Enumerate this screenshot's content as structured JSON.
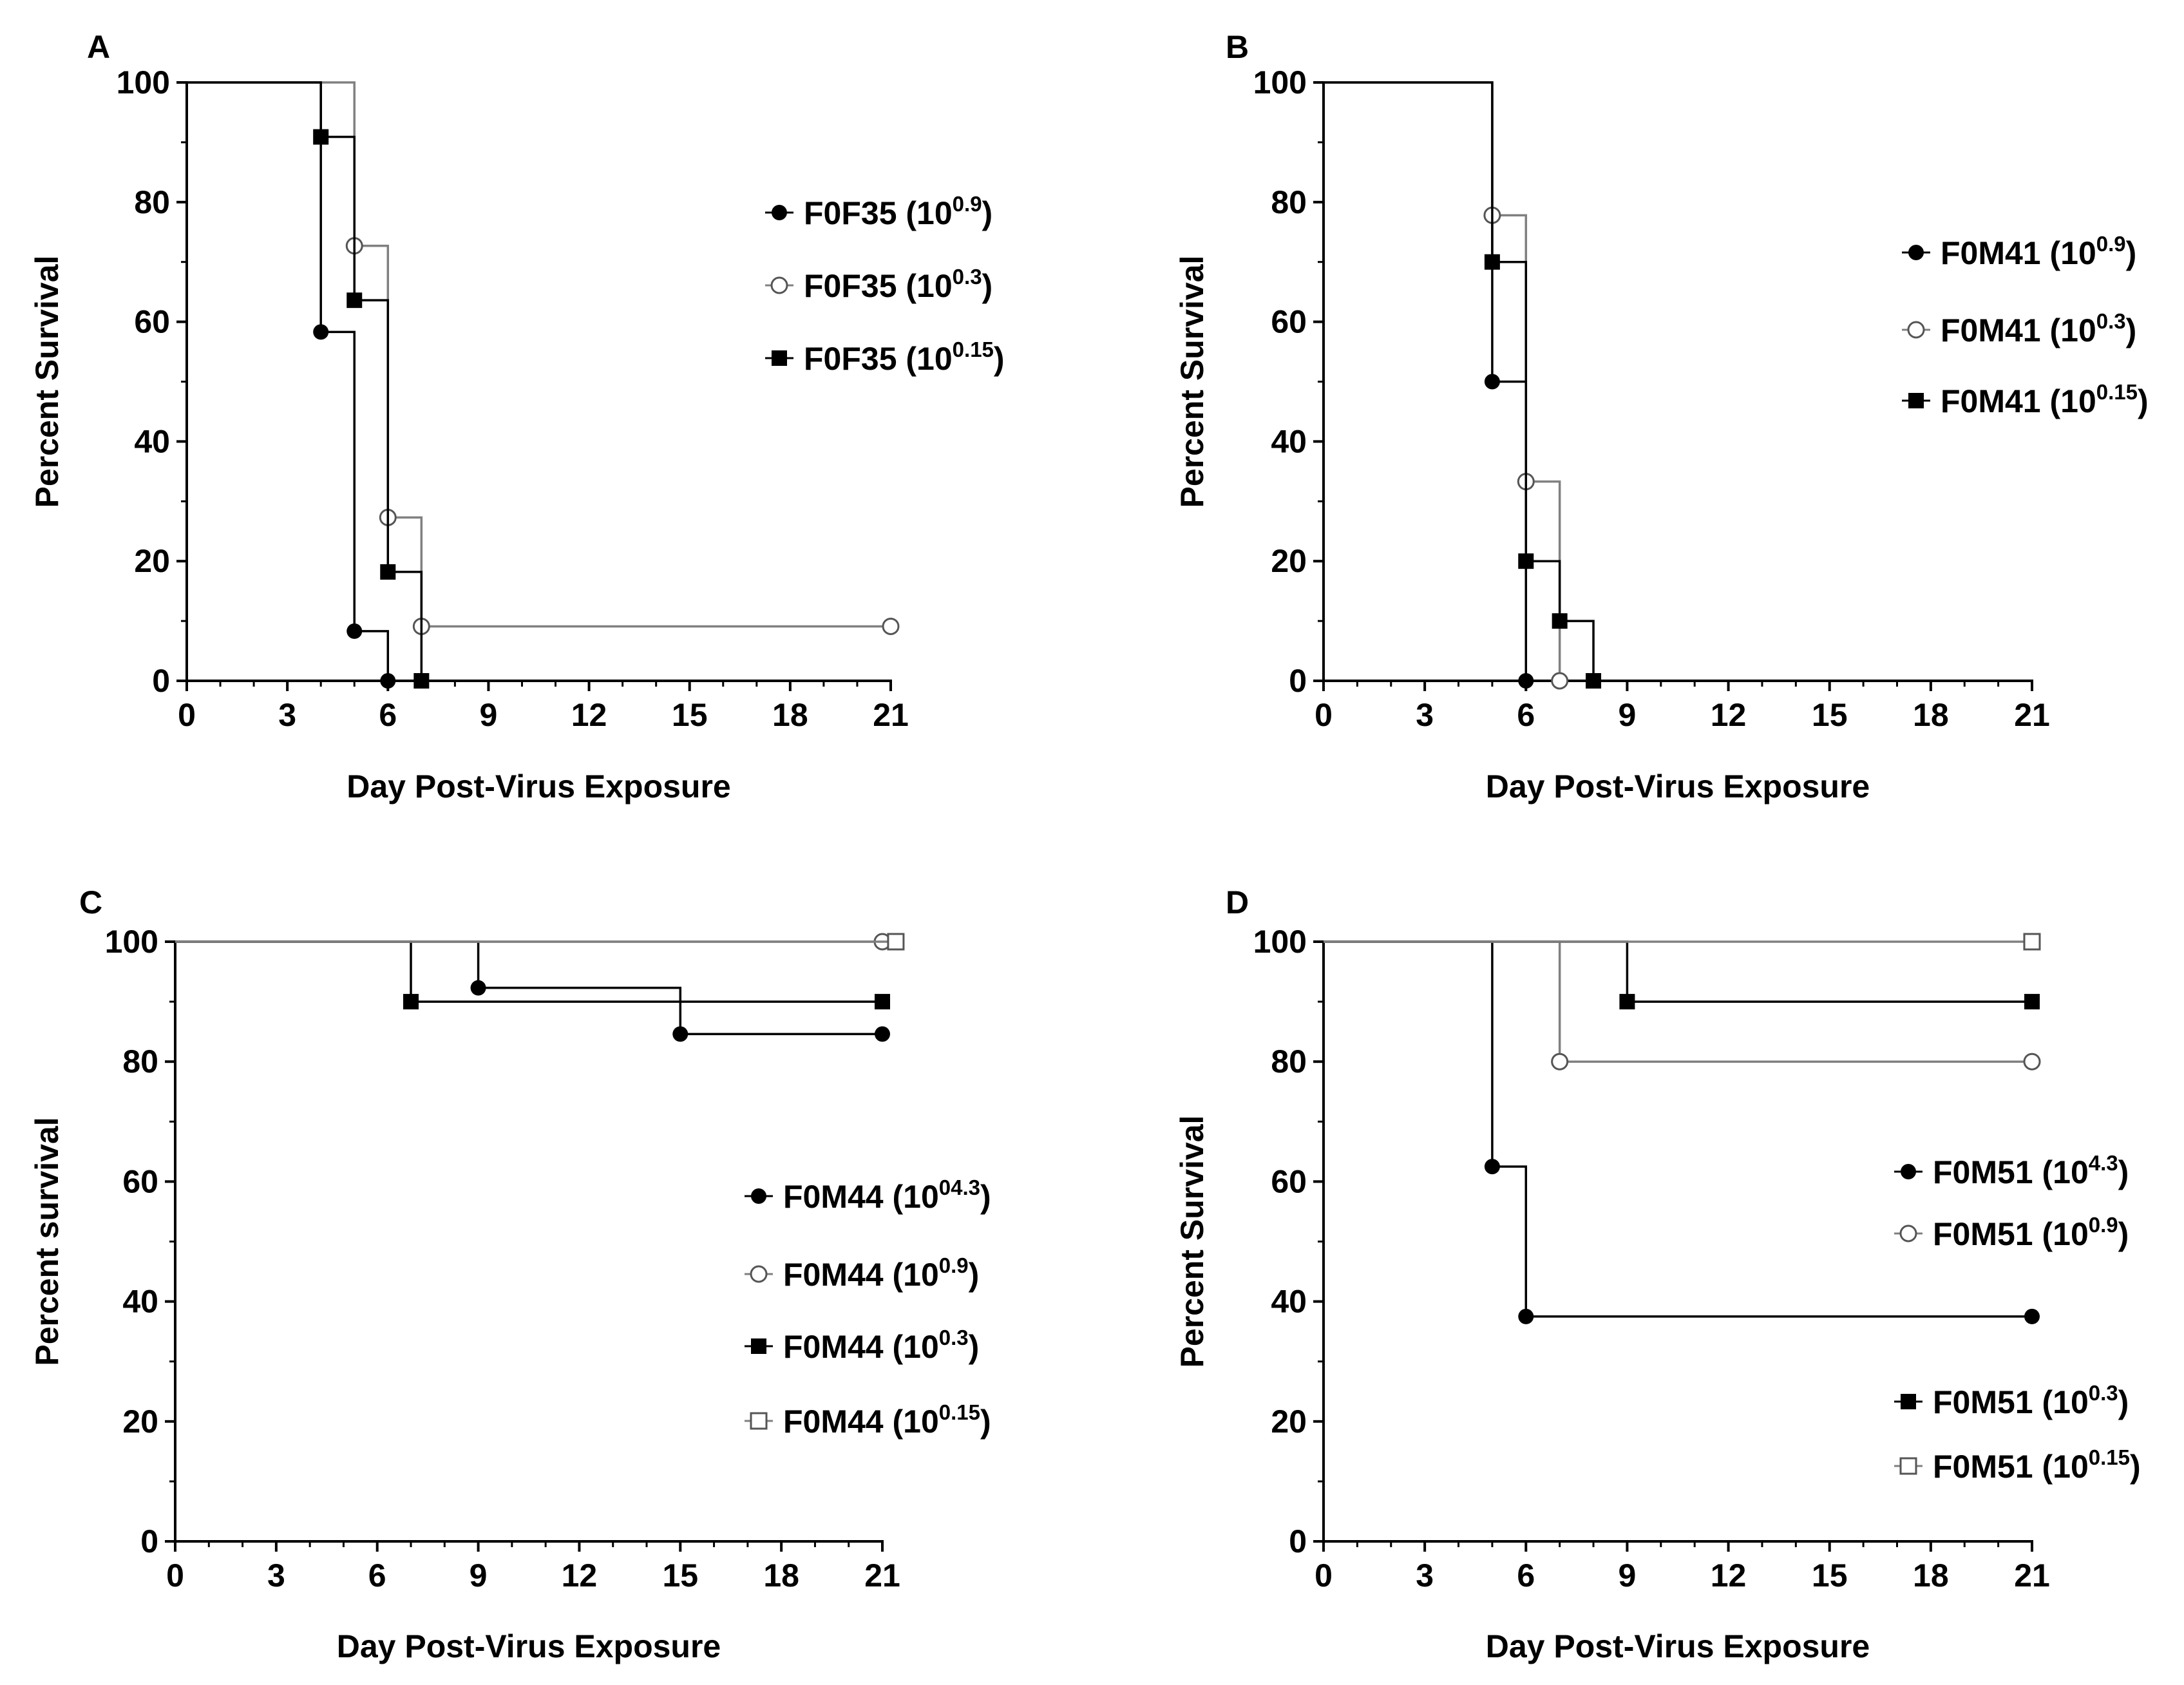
{
  "chart_data": [
    {
      "type": "line",
      "step": true,
      "panel": "A",
      "title": "",
      "xlabel": "Day Post-Virus Exposure",
      "ylabel": "Percent Survival",
      "xlim": [
        0,
        21
      ],
      "ylim": [
        0,
        100
      ],
      "xticks": [
        "0",
        "3",
        "6",
        "9",
        "12",
        "15",
        "18",
        "21"
      ],
      "yticks": [
        "0",
        "20",
        "40",
        "60",
        "80",
        "100"
      ],
      "legend_position": "right",
      "series": [
        {
          "name": "F0F35",
          "exp": "0.9",
          "marker": "filled-circle",
          "color": "#000000",
          "x": [
            0,
            4,
            5,
            6
          ],
          "y": [
            100,
            58.3,
            8.3,
            0
          ]
        },
        {
          "name": "F0F35",
          "exp": "0.3",
          "marker": "open-circle",
          "color": "#808080",
          "x": [
            0,
            5,
            6,
            7,
            21
          ],
          "y": [
            100,
            72.7,
            27.3,
            9.1,
            9.1
          ]
        },
        {
          "name": "F0F35",
          "exp": "0.15",
          "marker": "filled-square",
          "color": "#000000",
          "x": [
            0,
            4,
            5,
            6,
            7
          ],
          "y": [
            100,
            90.9,
            63.6,
            18.2,
            0
          ]
        }
      ]
    },
    {
      "type": "line",
      "step": true,
      "panel": "B",
      "title": "",
      "xlabel": "Day Post-Virus Exposure",
      "ylabel": "Percent Survival",
      "xlim": [
        0,
        21
      ],
      "ylim": [
        0,
        100
      ],
      "xticks": [
        "0",
        "3",
        "6",
        "9",
        "12",
        "15",
        "18",
        "21"
      ],
      "yticks": [
        "0",
        "20",
        "40",
        "60",
        "80",
        "100"
      ],
      "legend_position": "right",
      "series": [
        {
          "name": "F0M41",
          "exp": "0.9",
          "marker": "filled-circle",
          "color": "#000000",
          "x": [
            0,
            5,
            6
          ],
          "y": [
            100,
            50,
            0
          ]
        },
        {
          "name": "F0M41",
          "exp": "0.3",
          "marker": "open-circle",
          "color": "#808080",
          "x": [
            0,
            5,
            6,
            7
          ],
          "y": [
            100,
            77.8,
            33.3,
            0
          ]
        },
        {
          "name": "F0M41",
          "exp": "0.15",
          "marker": "filled-square",
          "color": "#000000",
          "x": [
            0,
            5,
            6,
            7,
            8
          ],
          "y": [
            100,
            70,
            20,
            10,
            0
          ]
        }
      ]
    },
    {
      "type": "line",
      "step": true,
      "panel": "C",
      "title": "",
      "xlabel": "Day Post-Virus Exposure",
      "ylabel": "Percent survival",
      "xlim": [
        0,
        21
      ],
      "ylim": [
        0,
        100
      ],
      "xticks": [
        "0",
        "3",
        "6",
        "9",
        "12",
        "15",
        "18",
        "21"
      ],
      "yticks": [
        "0",
        "20",
        "40",
        "60",
        "80",
        "100"
      ],
      "legend_position": "right",
      "series": [
        {
          "name": "F0M44",
          "exp": "04.3",
          "marker": "filled-circle",
          "color": "#000000",
          "x": [
            0,
            9,
            15,
            21
          ],
          "y": [
            100,
            92.3,
            84.6,
            84.6
          ]
        },
        {
          "name": "F0M44",
          "exp": "0.9",
          "marker": "open-circle",
          "color": "#808080",
          "x": [
            0,
            21
          ],
          "y": [
            100,
            100
          ]
        },
        {
          "name": "F0M44",
          "exp": "0.3",
          "marker": "filled-square",
          "color": "#000000",
          "x": [
            0,
            7,
            21
          ],
          "y": [
            100,
            90,
            90
          ]
        },
        {
          "name": "F0M44",
          "exp": "0.15",
          "marker": "open-square",
          "color": "#808080",
          "x": [
            0,
            21.4
          ],
          "y": [
            100,
            100
          ]
        }
      ]
    },
    {
      "type": "line",
      "step": true,
      "panel": "D",
      "title": "",
      "xlabel": "Day Post-Virus Exposure",
      "ylabel": "Percent Survival",
      "xlim": [
        0,
        21
      ],
      "ylim": [
        0,
        100
      ],
      "xticks": [
        "0",
        "3",
        "6",
        "9",
        "12",
        "15",
        "18",
        "21"
      ],
      "yticks": [
        "0",
        "20",
        "40",
        "60",
        "80",
        "100"
      ],
      "legend_position": "right",
      "series": [
        {
          "name": "F0M51",
          "exp": "4.3",
          "marker": "filled-circle",
          "color": "#000000",
          "x": [
            0,
            5,
            6,
            21
          ],
          "y": [
            100,
            62.5,
            37.5,
            37.5
          ]
        },
        {
          "name": "F0M51",
          "exp": "0.9",
          "marker": "open-circle",
          "color": "#808080",
          "x": [
            0,
            7,
            21
          ],
          "y": [
            100,
            80,
            80
          ]
        },
        {
          "name": "F0M51",
          "exp": "0.3",
          "marker": "filled-square",
          "color": "#000000",
          "x": [
            0,
            9,
            21
          ],
          "y": [
            100,
            90,
            90
          ]
        },
        {
          "name": "F0M51",
          "exp": "0.15",
          "marker": "open-square",
          "color": "#808080",
          "x": [
            0,
            21
          ],
          "y": [
            100,
            100
          ]
        }
      ]
    }
  ]
}
